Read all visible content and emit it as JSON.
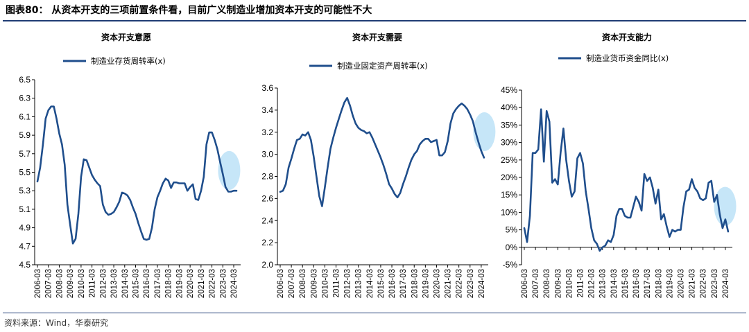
{
  "figure_title": "图表80：  从资本开支的三项前置条件看，目前广义制造业增加资本开支的可能性不大",
  "source_note": "资料来源：Wind，华泰研究",
  "line_color": "#1f4e8c",
  "highlight_color": "#c6e6f8",
  "chart_data": [
    {
      "type": "line",
      "title": "资本开支意愿",
      "legend": "制造业存货周转率(x)",
      "ylim": [
        4.5,
        6.5
      ],
      "yticks": [
        "4.5",
        "4.7",
        "4.9",
        "5.1",
        "5.3",
        "5.5",
        "5.7",
        "5.9",
        "6.1",
        "6.3",
        "6.5"
      ],
      "xticks": [
        "2006-03",
        "2007-03",
        "2008-03",
        "2009-03",
        "2010-03",
        "2011-03",
        "2012-03",
        "2013-03",
        "2014-03",
        "2015-03",
        "2016-03",
        "2017-03",
        "2018-03",
        "2019-03",
        "2020-03",
        "2021-03",
        "2022-03",
        "2023-03",
        "2024-03"
      ],
      "x": [
        2006.17,
        2006.42,
        2006.67,
        2006.92,
        2007.17,
        2007.42,
        2007.67,
        2007.92,
        2008.17,
        2008.42,
        2008.67,
        2008.92,
        2009.17,
        2009.42,
        2009.67,
        2009.92,
        2010.17,
        2010.42,
        2010.67,
        2010.92,
        2011.17,
        2011.42,
        2011.67,
        2011.92,
        2012.17,
        2012.42,
        2012.67,
        2012.92,
        2013.17,
        2013.42,
        2013.67,
        2013.92,
        2014.17,
        2014.42,
        2014.67,
        2014.92,
        2015.17,
        2015.42,
        2015.67,
        2015.92,
        2016.17,
        2016.42,
        2016.67,
        2016.92,
        2017.17,
        2017.42,
        2017.67,
        2017.92,
        2018.17,
        2018.42,
        2018.67,
        2018.92,
        2019.17,
        2019.42,
        2019.67,
        2019.92,
        2020.17,
        2020.42,
        2020.67,
        2020.92,
        2021.17,
        2021.42,
        2021.67,
        2021.92,
        2022.17,
        2022.42,
        2022.67,
        2022.92,
        2023.17,
        2023.42,
        2023.67,
        2023.92,
        2024.17,
        2024.42
      ],
      "series": [
        {
          "values": [
            5.4,
            5.55,
            5.8,
            6.08,
            6.17,
            6.21,
            6.21,
            6.08,
            5.92,
            5.8,
            5.58,
            5.15,
            4.93,
            4.73,
            4.78,
            5.05,
            5.45,
            5.64,
            5.63,
            5.55,
            5.47,
            5.42,
            5.38,
            5.35,
            5.15,
            5.07,
            5.04,
            5.05,
            5.07,
            5.12,
            5.18,
            5.28,
            5.27,
            5.25,
            5.2,
            5.12,
            5.05,
            4.95,
            4.86,
            4.78,
            4.77,
            4.78,
            4.9,
            5.1,
            5.23,
            5.3,
            5.38,
            5.43,
            5.41,
            5.33,
            5.39,
            5.39,
            5.38,
            5.38,
            5.38,
            5.3,
            5.34,
            5.37,
            5.21,
            5.2,
            5.3,
            5.45,
            5.8,
            5.93,
            5.93,
            5.85,
            5.75,
            5.61,
            5.48,
            5.34,
            5.29,
            5.29,
            5.3,
            5.3
          ]
        }
      ],
      "highlight_x": 2023.2
    },
    {
      "type": "line",
      "title": "资本开支需要",
      "legend": "制造业固定资产周转率(x)",
      "ylim": [
        2.0,
        3.6
      ],
      "yticks": [
        "2.0",
        "2.2",
        "2.4",
        "2.6",
        "2.8",
        "3.0",
        "3.2",
        "3.4",
        "3.6"
      ],
      "xticks": [
        "2006-03",
        "2007-03",
        "2008-03",
        "2009-03",
        "2010-03",
        "2011-03",
        "2012-03",
        "2013-03",
        "2014-03",
        "2015-03",
        "2016-03",
        "2017-03",
        "2018-03",
        "2019-03",
        "2020-03",
        "2021-03",
        "2022-03",
        "2023-03",
        "2024-03"
      ],
      "x": [
        2006.17,
        2006.42,
        2006.67,
        2006.92,
        2007.17,
        2007.42,
        2007.67,
        2007.92,
        2008.17,
        2008.42,
        2008.67,
        2008.92,
        2009.17,
        2009.42,
        2009.67,
        2009.92,
        2010.17,
        2010.42,
        2010.67,
        2010.92,
        2011.17,
        2011.42,
        2011.67,
        2011.92,
        2012.17,
        2012.42,
        2012.67,
        2012.92,
        2013.17,
        2013.42,
        2013.67,
        2013.92,
        2014.17,
        2014.42,
        2014.67,
        2014.92,
        2015.17,
        2015.42,
        2015.67,
        2015.92,
        2016.17,
        2016.42,
        2016.67,
        2016.92,
        2017.17,
        2017.42,
        2017.67,
        2017.92,
        2018.17,
        2018.42,
        2018.67,
        2018.92,
        2019.17,
        2019.42,
        2019.67,
        2019.92,
        2020.17,
        2020.42,
        2020.67,
        2020.92,
        2021.17,
        2021.42,
        2021.67,
        2021.92,
        2022.17,
        2022.42,
        2022.67,
        2022.92,
        2023.17,
        2023.42,
        2023.67,
        2023.92,
        2024.17,
        2024.42
      ],
      "series": [
        {
          "values": [
            2.66,
            2.67,
            2.73,
            2.88,
            2.96,
            3.05,
            3.13,
            3.14,
            3.18,
            3.17,
            3.2,
            3.13,
            2.98,
            2.8,
            2.62,
            2.53,
            2.7,
            2.88,
            3.05,
            3.15,
            3.24,
            3.32,
            3.4,
            3.47,
            3.51,
            3.44,
            3.35,
            3.28,
            3.24,
            3.22,
            3.21,
            3.19,
            3.2,
            3.15,
            3.09,
            3.03,
            2.97,
            2.9,
            2.82,
            2.73,
            2.69,
            2.64,
            2.61,
            2.65,
            2.73,
            2.8,
            2.88,
            2.95,
            3.0,
            3.03,
            3.09,
            3.12,
            3.14,
            3.14,
            3.11,
            3.12,
            3.13,
            2.99,
            2.99,
            3.02,
            3.12,
            3.28,
            3.37,
            3.41,
            3.44,
            3.46,
            3.44,
            3.41,
            3.36,
            3.3,
            3.2,
            3.11,
            3.03,
            2.97
          ]
        }
      ],
      "highlight_x": 2023.9
    },
    {
      "type": "line",
      "title": "资本开支能力",
      "legend": "制造业货币资金同比(x)",
      "ylim": [
        -5,
        45
      ],
      "yticks": [
        "-5%",
        "0%",
        "5%",
        "10%",
        "15%",
        "20%",
        "25%",
        "30%",
        "35%",
        "40%",
        "45%"
      ],
      "xticks": [
        "2006-03",
        "2007-03",
        "2008-03",
        "2009-03",
        "2010-03",
        "2011-03",
        "2012-03",
        "2013-03",
        "2014-03",
        "2015-03",
        "2016-03",
        "2017-03",
        "2018-03",
        "2019-03",
        "2020-03",
        "2021-03",
        "2022-03",
        "2023-03",
        "2024-03"
      ],
      "x": [
        2006.17,
        2006.42,
        2006.67,
        2006.92,
        2007.17,
        2007.42,
        2007.67,
        2007.92,
        2008.17,
        2008.42,
        2008.67,
        2008.92,
        2009.17,
        2009.42,
        2009.67,
        2009.92,
        2010.17,
        2010.42,
        2010.67,
        2010.92,
        2011.17,
        2011.42,
        2011.67,
        2011.92,
        2012.17,
        2012.42,
        2012.67,
        2012.92,
        2013.17,
        2013.42,
        2013.67,
        2013.92,
        2014.17,
        2014.42,
        2014.67,
        2014.92,
        2015.17,
        2015.42,
        2015.67,
        2015.92,
        2016.17,
        2016.42,
        2016.67,
        2016.92,
        2017.17,
        2017.42,
        2017.67,
        2017.92,
        2018.17,
        2018.42,
        2018.67,
        2018.92,
        2019.17,
        2019.42,
        2019.67,
        2019.92,
        2020.17,
        2020.42,
        2020.67,
        2020.92,
        2021.17,
        2021.42,
        2021.67,
        2021.92,
        2022.17,
        2022.42,
        2022.67,
        2022.92,
        2023.17,
        2023.42,
        2023.67,
        2023.92,
        2024.17,
        2024.42
      ],
      "series": [
        {
          "values": [
            5.5,
            1.5,
            9.0,
            27.0,
            27.0,
            28.0,
            39.5,
            24.5,
            39.0,
            36.0,
            18.5,
            19.5,
            18.0,
            27.0,
            34.0,
            25.0,
            19.0,
            14.5,
            16.0,
            25.5,
            27.0,
            24.0,
            16.0,
            11.0,
            5.5,
            2.0,
            1.0,
            -1.0,
            0.0,
            0.5,
            2.0,
            1.5,
            3.5,
            9.0,
            11.0,
            11.0,
            9.0,
            8.5,
            8.5,
            11.5,
            14.5,
            13.0,
            10.5,
            21.0,
            19.0,
            20.0,
            17.0,
            12.5,
            16.5,
            8.0,
            9.5,
            6.0,
            3.0,
            5.0,
            4.5,
            5.0,
            5.0,
            11.5,
            16.0,
            16.5,
            19.5,
            17.0,
            16.0,
            14.0,
            13.5,
            14.0,
            18.5,
            19.0,
            13.0,
            15.0,
            9.5,
            5.5,
            8.0,
            4.5
          ]
        }
      ],
      "highlight_x": 2023.6
    }
  ]
}
